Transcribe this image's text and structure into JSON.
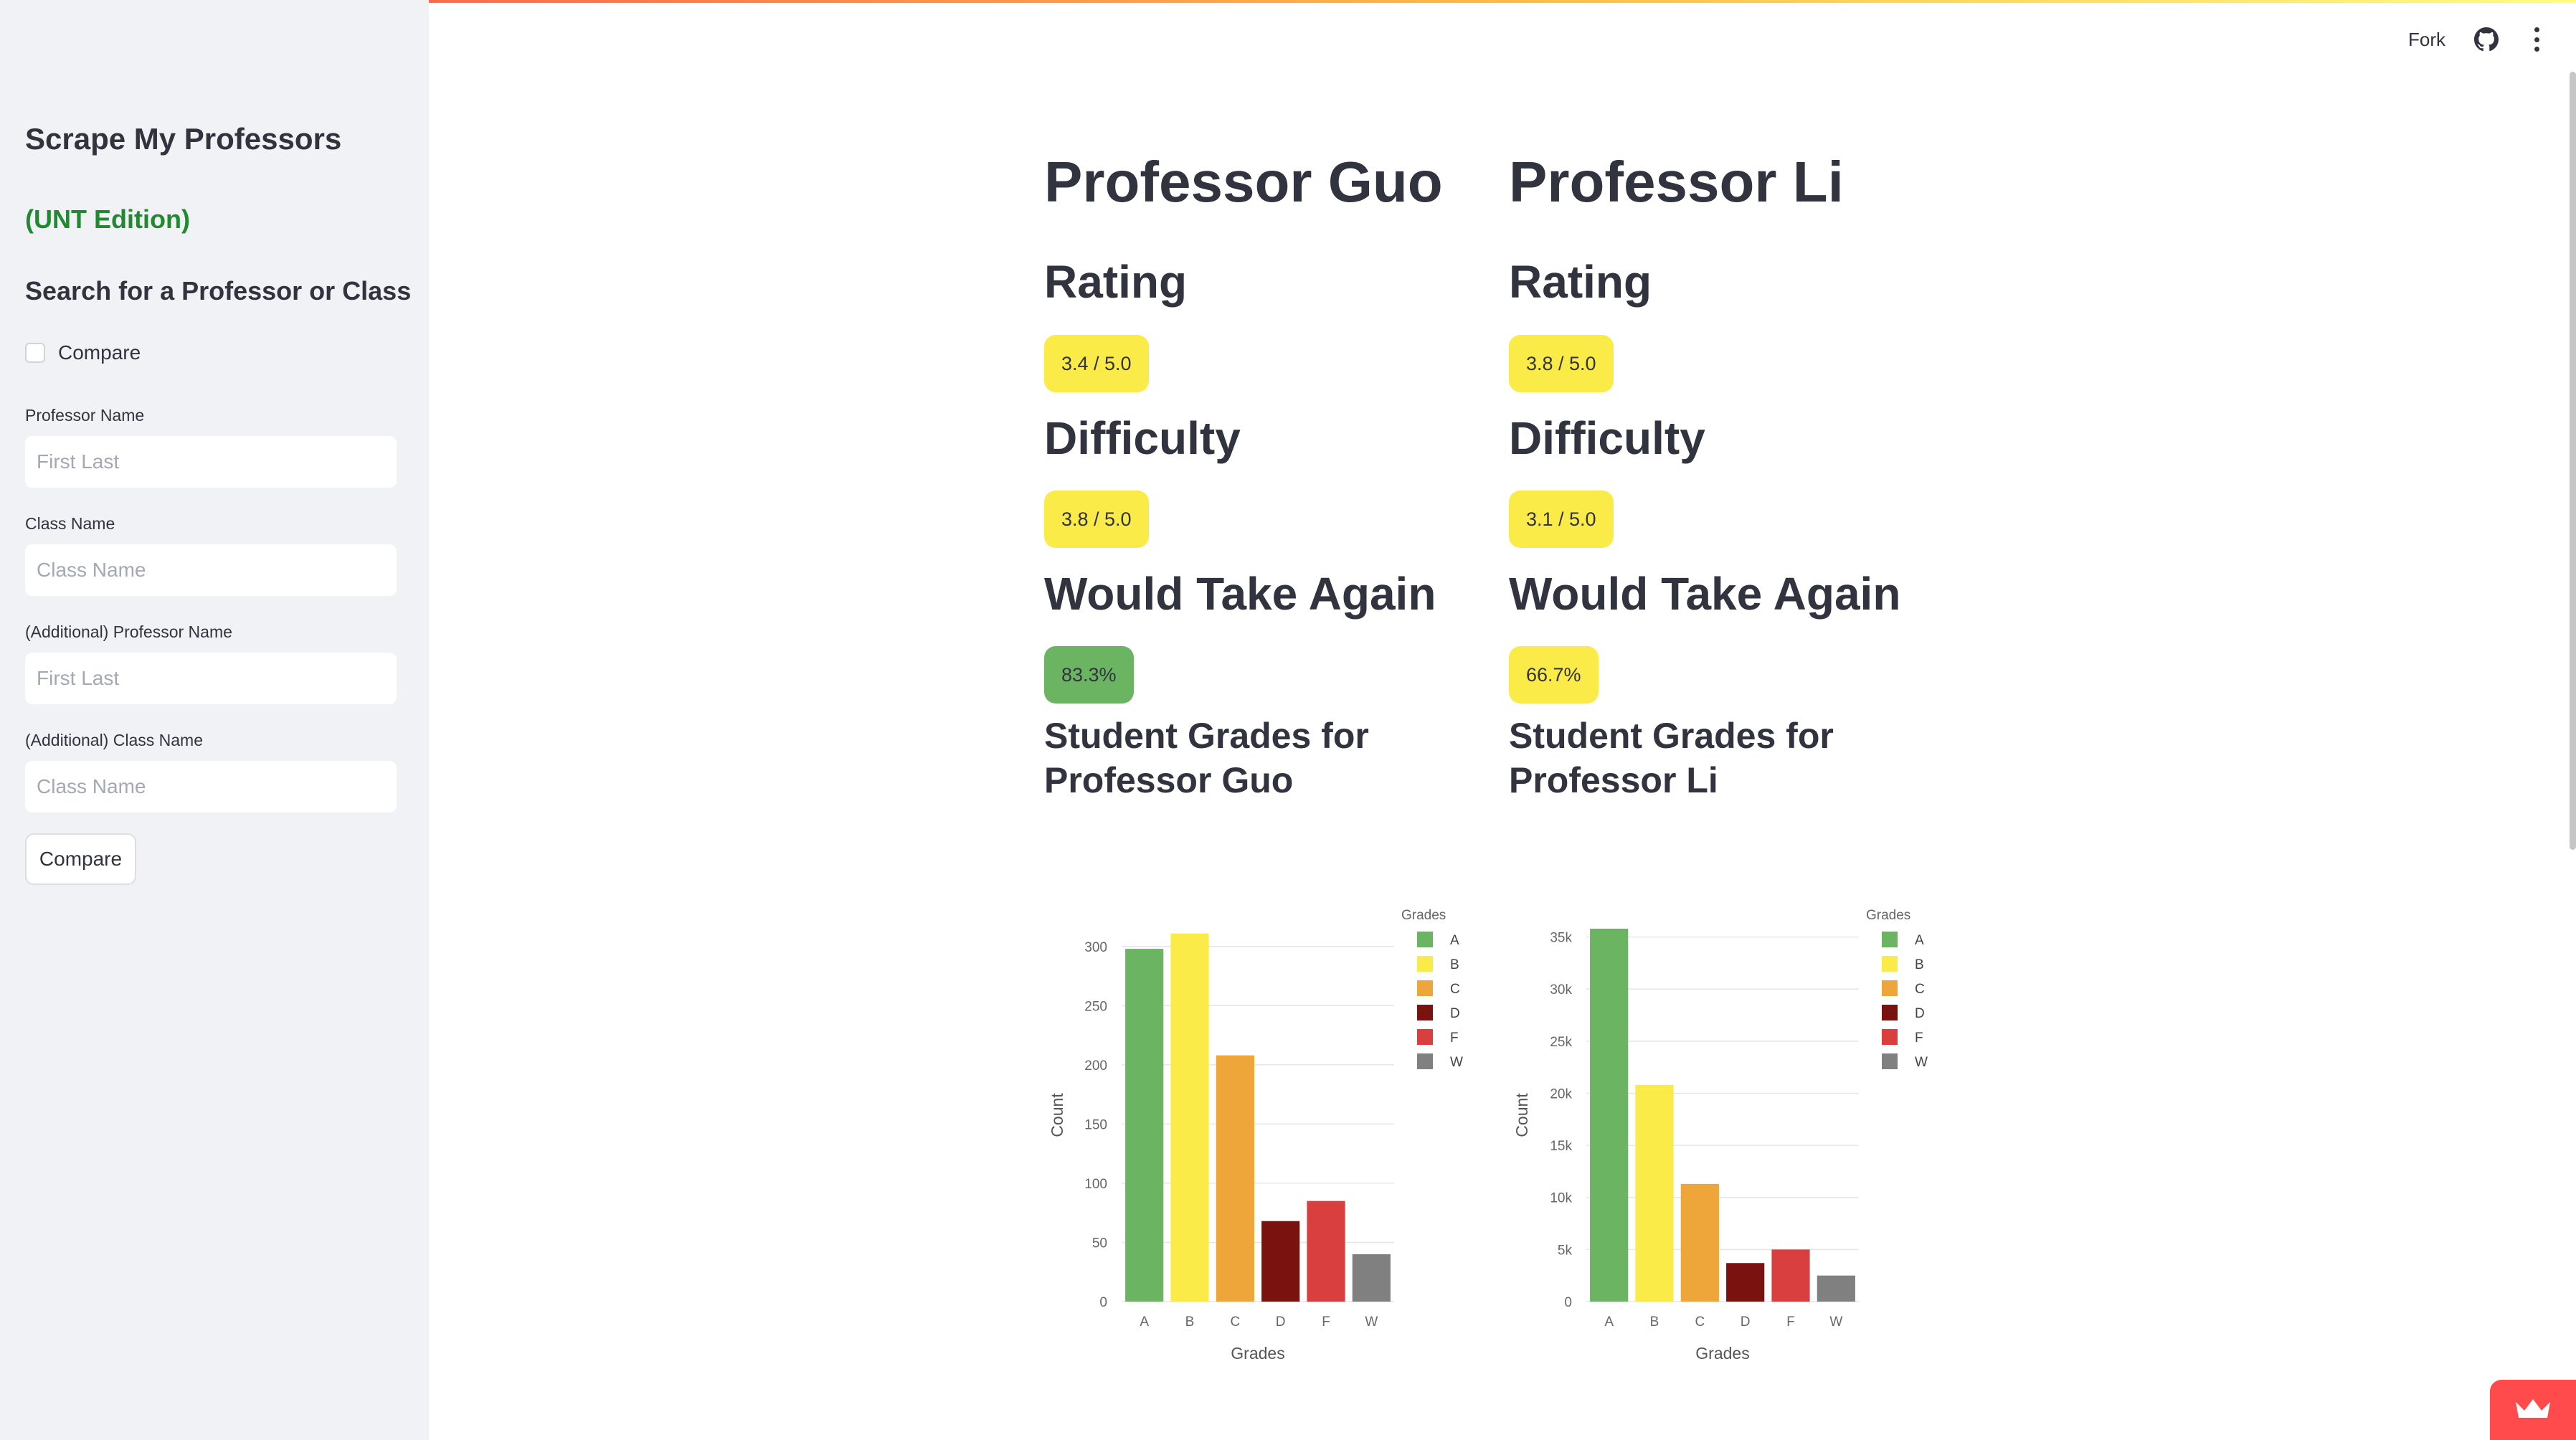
{
  "sidebar": {
    "title": "Scrape My Professors",
    "subtitle": "(UNT Edition)",
    "search_heading": "Search for a Professor or Class",
    "compare_checkbox_label": "Compare",
    "fields": [
      {
        "label": "Professor Name",
        "placeholder": "First Last"
      },
      {
        "label": "Class Name",
        "placeholder": "Class Name"
      },
      {
        "label": "(Additional) Professor Name",
        "placeholder": "First Last"
      },
      {
        "label": "(Additional) Class Name",
        "placeholder": "Class Name"
      }
    ],
    "compare_button": "Compare"
  },
  "header": {
    "fork_label": "Fork",
    "github_icon": "github-icon",
    "menu_icon": "kebab-menu-icon"
  },
  "colors": {
    "yellow_badge": "#fbeb48",
    "green_badge": "#6bb562",
    "grade_A": "#6bb562",
    "grade_B": "#fbeb48",
    "grade_C": "#eea53a",
    "grade_D": "#7a1210",
    "grade_F": "#d93f3f",
    "grade_W": "#808080",
    "accent": "#ff4b4b",
    "subtitle_green": "#21892f"
  },
  "professors": [
    {
      "name": "Professor Guo",
      "rating_label": "Rating",
      "rating": "3.4 / 5.0",
      "difficulty_label": "Difficulty",
      "difficulty": "3.8 / 5.0",
      "take_again_label": "Would Take Again",
      "take_again": "83.3%",
      "grades_heading": "Student Grades for Professor Guo"
    },
    {
      "name": "Professor Li",
      "rating_label": "Rating",
      "rating": "3.8 / 5.0",
      "difficulty_label": "Difficulty",
      "difficulty": "3.1 / 5.0",
      "take_again_label": "Would Take Again",
      "take_again": "66.7%",
      "grades_heading": "Student Grades for Professor Li"
    }
  ],
  "chart_data": [
    {
      "type": "bar",
      "categories": [
        "A",
        "B",
        "C",
        "D",
        "F",
        "W"
      ],
      "values": [
        298,
        311,
        208,
        68,
        85,
        40
      ],
      "xlabel": "Grades",
      "ylabel": "Count",
      "legend_title": "Grades",
      "legend_position": "top-right",
      "ylim": [
        0,
        315
      ],
      "yticks": [
        0,
        50,
        100,
        150,
        200,
        250,
        300
      ],
      "ytick_labels": [
        "0",
        "50",
        "100",
        "150",
        "200",
        "250",
        "300"
      ],
      "grid": true
    },
    {
      "type": "bar",
      "categories": [
        "A",
        "B",
        "C",
        "D",
        "F",
        "W"
      ],
      "values": [
        35800,
        20800,
        11300,
        3700,
        5000,
        2500
      ],
      "xlabel": "Grades",
      "ylabel": "Count",
      "legend_title": "Grades",
      "legend_position": "top-right",
      "ylim": [
        0,
        35800
      ],
      "yticks": [
        0,
        5000,
        10000,
        15000,
        20000,
        25000,
        30000,
        35000
      ],
      "ytick_labels": [
        "0",
        "5k",
        "10k",
        "15k",
        "20k",
        "25k",
        "30k",
        "35k"
      ],
      "grid": true
    }
  ]
}
